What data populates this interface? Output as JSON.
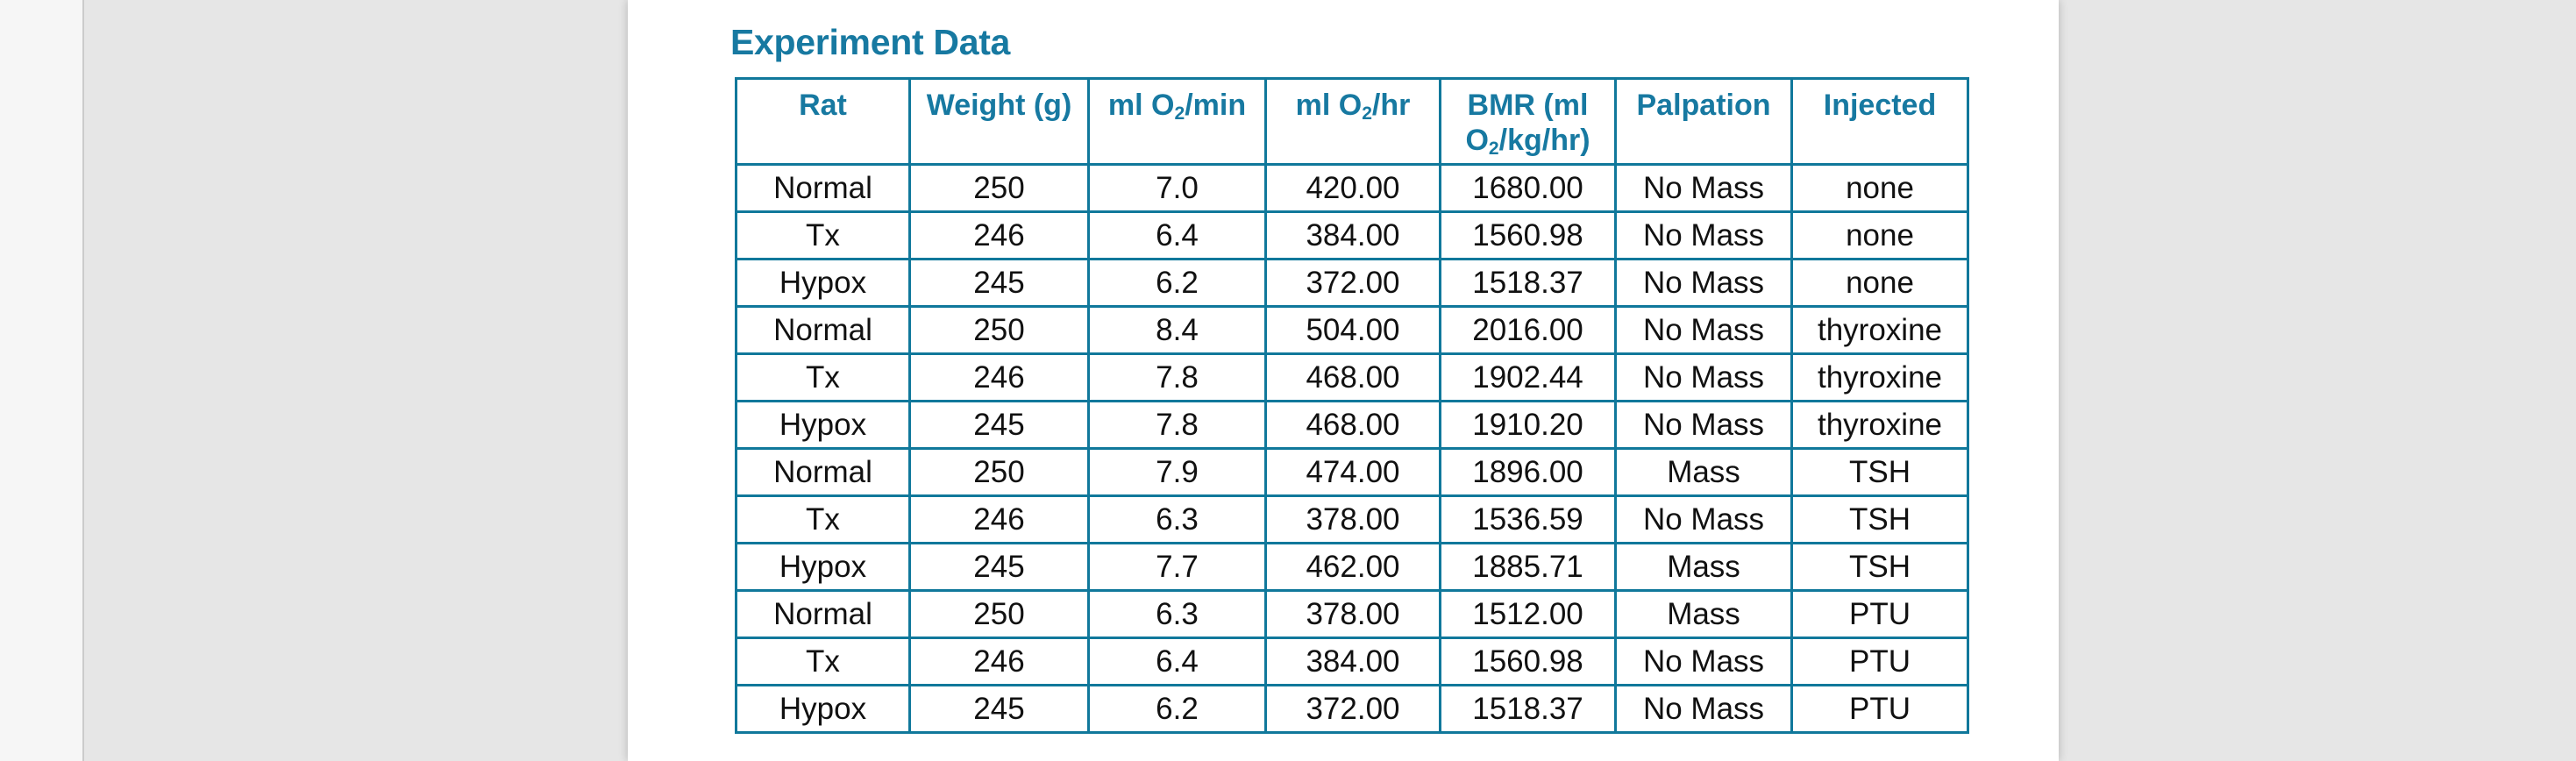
{
  "colors": {
    "accent": "#1779A1",
    "table_border": "#10789B",
    "body_text": "#111111",
    "canvas_bg": "#E6E6E6",
    "rail_bg": "#F6F6F6",
    "rail_divider": "#CBCBCB",
    "page_bg": "#FFFFFF"
  },
  "section": {
    "title": "Experiment Data"
  },
  "table": {
    "headers": [
      {
        "pre": "Rat",
        "sub": "",
        "post": ""
      },
      {
        "pre": "Weight (g)",
        "sub": "",
        "post": ""
      },
      {
        "pre": "ml O",
        "sub": "2",
        "post": "/min"
      },
      {
        "pre": "ml O",
        "sub": "2",
        "post": "/hr"
      },
      {
        "pre": "BMR (ml O",
        "sub": "2",
        "post": "/kg/hr)"
      },
      {
        "pre": "Palpation",
        "sub": "",
        "post": ""
      },
      {
        "pre": "Injected",
        "sub": "",
        "post": ""
      }
    ],
    "rows": [
      [
        "Normal",
        "250",
        "7.0",
        "420.00",
        "1680.00",
        "No Mass",
        "none"
      ],
      [
        "Tx",
        "246",
        "6.4",
        "384.00",
        "1560.98",
        "No Mass",
        "none"
      ],
      [
        "Hypox",
        "245",
        "6.2",
        "372.00",
        "1518.37",
        "No Mass",
        "none"
      ],
      [
        "Normal",
        "250",
        "8.4",
        "504.00",
        "2016.00",
        "No Mass",
        "thyroxine"
      ],
      [
        "Tx",
        "246",
        "7.8",
        "468.00",
        "1902.44",
        "No Mass",
        "thyroxine"
      ],
      [
        "Hypox",
        "245",
        "7.8",
        "468.00",
        "1910.20",
        "No Mass",
        "thyroxine"
      ],
      [
        "Normal",
        "250",
        "7.9",
        "474.00",
        "1896.00",
        "Mass",
        "TSH"
      ],
      [
        "Tx",
        "246",
        "6.3",
        "378.00",
        "1536.59",
        "No Mass",
        "TSH"
      ],
      [
        "Hypox",
        "245",
        "7.7",
        "462.00",
        "1885.71",
        "Mass",
        "TSH"
      ],
      [
        "Normal",
        "250",
        "6.3",
        "378.00",
        "1512.00",
        "Mass",
        "PTU"
      ],
      [
        "Tx",
        "246",
        "6.4",
        "384.00",
        "1560.98",
        "No Mass",
        "PTU"
      ],
      [
        "Hypox",
        "245",
        "6.2",
        "372.00",
        "1518.37",
        "No Mass",
        "PTU"
      ]
    ]
  }
}
